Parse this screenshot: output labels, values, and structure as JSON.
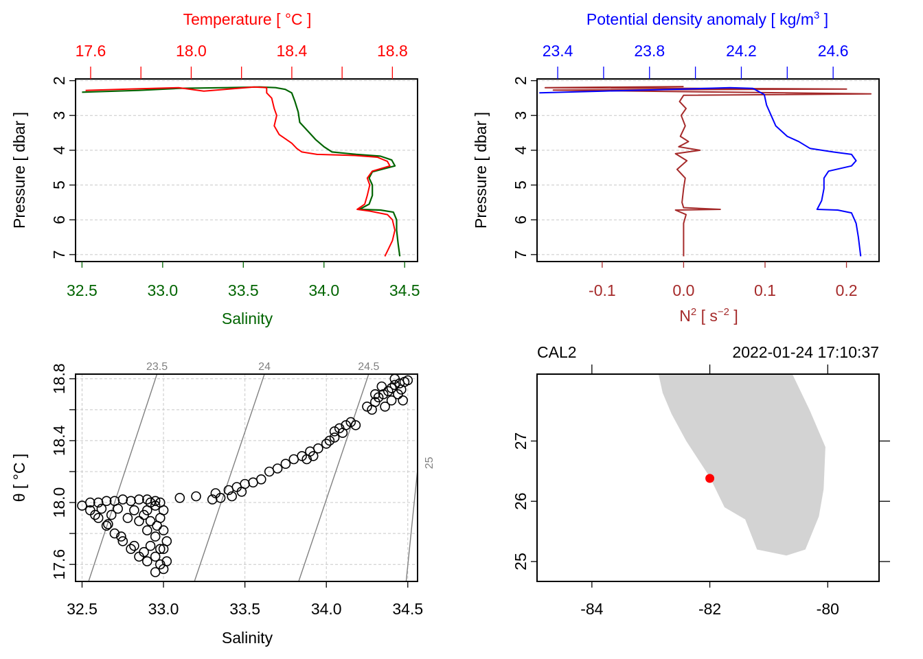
{
  "colors": {
    "temperature": "#ff0000",
    "salinity": "#006400",
    "density": "#0000ff",
    "n2": "#a52a2a",
    "land": "#d3d3d3",
    "station": "#ff0000",
    "isopycnal": "#808080",
    "grid": "#c8c8c8"
  },
  "chart_data": [
    {
      "id": "salinity-temperature-profile",
      "type": "line",
      "top_axis_title": "Temperature [ °C ]",
      "bottom_axis_title": "Salinity",
      "left_axis_title": "Pressure [ dbar ]",
      "y_range": [
        7.2,
        1.95
      ],
      "y_ticks": [
        2,
        3,
        4,
        5,
        6,
        7
      ],
      "y_tick_labels": [
        "2",
        "3",
        "4",
        "5",
        "6",
        "7"
      ],
      "bottom_range": [
        32.46,
        34.58
      ],
      "bottom_ticks": [
        32.5,
        33.0,
        33.5,
        34.0,
        34.5
      ],
      "bottom_tick_labels": [
        "32.5",
        "33.0",
        "33.5",
        "34.0",
        "34.5"
      ],
      "top_range": [
        17.54,
        18.9
      ],
      "top_ticks": [
        17.6,
        17.8,
        18.0,
        18.2,
        18.4,
        18.6,
        18.8
      ],
      "top_tick_labels": [
        "17.6",
        "",
        "18.0",
        "",
        "18.4",
        "",
        "18.8"
      ],
      "series": [
        {
          "name": "Temperature",
          "axis": "top",
          "points": [
            [
              17.58,
              2.28
            ],
            [
              17.75,
              2.24
            ],
            [
              17.95,
              2.2
            ],
            [
              18.05,
              2.3
            ],
            [
              18.25,
              2.18
            ],
            [
              18.3,
              2.2
            ],
            [
              18.3,
              2.35
            ],
            [
              18.32,
              2.5
            ],
            [
              18.33,
              2.8
            ],
            [
              18.34,
              3.0
            ],
            [
              18.33,
              3.3
            ],
            [
              18.35,
              3.55
            ],
            [
              18.37,
              3.65
            ],
            [
              18.4,
              3.8
            ],
            [
              18.42,
              3.95
            ],
            [
              18.44,
              4.05
            ],
            [
              18.5,
              4.12
            ],
            [
              18.65,
              4.15
            ],
            [
              18.74,
              4.2
            ],
            [
              18.78,
              4.32
            ],
            [
              18.79,
              4.45
            ],
            [
              18.72,
              4.6
            ],
            [
              18.7,
              4.8
            ],
            [
              18.71,
              5.0
            ],
            [
              18.7,
              5.3
            ],
            [
              18.69,
              5.55
            ],
            [
              18.66,
              5.7
            ],
            [
              18.71,
              5.75
            ],
            [
              18.78,
              5.85
            ],
            [
              18.8,
              6.0
            ],
            [
              18.81,
              6.3
            ],
            [
              18.8,
              6.6
            ],
            [
              18.78,
              6.9
            ],
            [
              18.77,
              7.05
            ]
          ]
        },
        {
          "name": "Salinity",
          "axis": "bottom",
          "points": [
            [
              32.5,
              2.33
            ],
            [
              32.85,
              2.28
            ],
            [
              33.1,
              2.22
            ],
            [
              33.4,
              2.2
            ],
            [
              33.6,
              2.18
            ],
            [
              33.7,
              2.2
            ],
            [
              33.76,
              2.25
            ],
            [
              33.8,
              2.35
            ],
            [
              33.82,
              2.6
            ],
            [
              33.84,
              2.9
            ],
            [
              33.85,
              3.2
            ],
            [
              33.9,
              3.45
            ],
            [
              33.95,
              3.7
            ],
            [
              34.0,
              3.9
            ],
            [
              34.05,
              4.05
            ],
            [
              34.2,
              4.12
            ],
            [
              34.35,
              4.17
            ],
            [
              34.42,
              4.28
            ],
            [
              34.44,
              4.45
            ],
            [
              34.3,
              4.62
            ],
            [
              34.28,
              4.8
            ],
            [
              34.3,
              5.0
            ],
            [
              34.3,
              5.3
            ],
            [
              34.28,
              5.55
            ],
            [
              34.22,
              5.7
            ],
            [
              34.35,
              5.72
            ],
            [
              34.43,
              5.78
            ],
            [
              34.45,
              6.0
            ],
            [
              34.45,
              6.3
            ],
            [
              34.46,
              6.7
            ],
            [
              34.47,
              7.05
            ]
          ]
        }
      ]
    },
    {
      "id": "density-n2-profile",
      "type": "line",
      "top_axis_title": "Potential density anomaly [ kg/m",
      "top_axis_title_sup": "3",
      "top_axis_title_end": " ]",
      "bottom_axis_title": "N",
      "bottom_axis_title_sup": "2",
      "bottom_axis_title_mid": " [ s",
      "bottom_axis_title_sup2": "−2",
      "bottom_axis_title_end": " ]",
      "left_axis_title": "Pressure [ dbar ]",
      "y_range": [
        7.2,
        1.95
      ],
      "y_ticks": [
        2,
        3,
        4,
        5,
        6,
        7
      ],
      "y_tick_labels": [
        "2",
        "3",
        "4",
        "5",
        "6",
        "7"
      ],
      "bottom_range": [
        -0.18,
        0.24
      ],
      "bottom_ticks": [
        -0.1,
        0.0,
        0.1,
        0.2
      ],
      "bottom_tick_labels": [
        "-0.1",
        "0.0",
        "0.1",
        "0.2"
      ],
      "top_range": [
        23.31,
        24.8
      ],
      "top_ticks": [
        23.4,
        23.6,
        23.8,
        24.0,
        24.2,
        24.4,
        24.6
      ],
      "top_tick_labels": [
        "23.4",
        "",
        "23.8",
        "",
        "24.2",
        "",
        "24.6"
      ],
      "series": [
        {
          "name": "Potential density anomaly",
          "axis": "top",
          "points": [
            [
              23.32,
              2.35
            ],
            [
              23.6,
              2.3
            ],
            [
              23.95,
              2.24
            ],
            [
              24.15,
              2.2
            ],
            [
              24.25,
              2.22
            ],
            [
              24.3,
              2.4
            ],
            [
              24.31,
              2.7
            ],
            [
              24.33,
              3.0
            ],
            [
              24.35,
              3.3
            ],
            [
              24.4,
              3.6
            ],
            [
              24.45,
              3.75
            ],
            [
              24.5,
              3.95
            ],
            [
              24.6,
              4.05
            ],
            [
              24.68,
              4.12
            ],
            [
              24.7,
              4.3
            ],
            [
              24.68,
              4.45
            ],
            [
              24.58,
              4.6
            ],
            [
              24.56,
              4.8
            ],
            [
              24.56,
              5.1
            ],
            [
              24.55,
              5.45
            ],
            [
              24.53,
              5.7
            ],
            [
              24.62,
              5.72
            ],
            [
              24.68,
              5.8
            ],
            [
              24.7,
              6.1
            ],
            [
              24.71,
              6.5
            ],
            [
              24.72,
              7.05
            ]
          ]
        },
        {
          "name": "N2",
          "axis": "bottom",
          "points": [
            [
              0.0,
              2.17
            ],
            [
              -0.17,
              2.2
            ],
            [
              0.2,
              2.24
            ],
            [
              -0.16,
              2.27
            ],
            [
              0.23,
              2.38
            ],
            [
              0.0,
              2.42
            ],
            [
              -0.005,
              2.6
            ],
            [
              0.003,
              2.8
            ],
            [
              -0.003,
              3.0
            ],
            [
              0.002,
              3.3
            ],
            [
              -0.004,
              3.6
            ],
            [
              0.006,
              3.75
            ],
            [
              -0.006,
              3.9
            ],
            [
              0.02,
              4.0
            ],
            [
              -0.01,
              4.1
            ],
            [
              0.004,
              4.3
            ],
            [
              -0.008,
              4.55
            ],
            [
              0.002,
              4.8
            ],
            [
              0.0,
              5.1
            ],
            [
              -0.002,
              5.5
            ],
            [
              0.0,
              5.65
            ],
            [
              0.045,
              5.7
            ],
            [
              -0.01,
              5.72
            ],
            [
              0.003,
              5.85
            ],
            [
              0.0,
              6.1
            ],
            [
              0.0,
              6.5
            ],
            [
              0.0,
              7.05
            ]
          ]
        }
      ]
    },
    {
      "id": "ts-diagram",
      "type": "scatter",
      "xlabel": "Salinity",
      "ylabel": "θ [ °C ]",
      "x_range": [
        32.46,
        34.56
      ],
      "y_range": [
        17.49,
        18.83
      ],
      "x_ticks": [
        32.5,
        33.0,
        33.5,
        34.0,
        34.5
      ],
      "x_tick_labels": [
        "32.5",
        "33.0",
        "33.5",
        "34.0",
        "34.5"
      ],
      "y_ticks": [
        17.6,
        18.0,
        18.4,
        18.8
      ],
      "y_tick_labels": [
        "17.6",
        "18.0",
        "18.4",
        "18.8"
      ],
      "y_minor_ticks": [
        17.8,
        18.2,
        18.6
      ],
      "isopycnals": [
        {
          "label": "23.5",
          "x0": 32.54,
          "x1": 32.96
        },
        {
          "label": "24",
          "x0": 33.19,
          "x1": 33.62
        },
        {
          "label": "24.5",
          "x0": 33.83,
          "x1": 34.26
        },
        {
          "label": "25",
          "x0": 34.49,
          "x1": 34.62
        }
      ],
      "points": [
        [
          32.5,
          17.98
        ],
        [
          32.55,
          17.95
        ],
        [
          32.6,
          17.9
        ],
        [
          32.65,
          17.85
        ],
        [
          32.7,
          17.8
        ],
        [
          32.75,
          17.75
        ],
        [
          32.8,
          17.7
        ],
        [
          32.85,
          17.65
        ],
        [
          32.9,
          17.62
        ],
        [
          32.55,
          18.0
        ],
        [
          32.6,
          18.0
        ],
        [
          32.65,
          18.01
        ],
        [
          32.7,
          18.01
        ],
        [
          32.75,
          18.02
        ],
        [
          32.8,
          18.01
        ],
        [
          32.85,
          18.02
        ],
        [
          32.9,
          18.02
        ],
        [
          32.95,
          18.01
        ],
        [
          32.58,
          17.92
        ],
        [
          32.66,
          17.86
        ],
        [
          32.74,
          17.78
        ],
        [
          32.82,
          17.72
        ],
        [
          32.88,
          17.68
        ],
        [
          32.9,
          17.95
        ],
        [
          32.92,
          17.88
        ],
        [
          32.9,
          17.82
        ],
        [
          32.95,
          17.78
        ],
        [
          32.92,
          17.72
        ],
        [
          32.98,
          17.7
        ],
        [
          32.95,
          17.65
        ],
        [
          32.98,
          17.6
        ],
        [
          33.0,
          17.57
        ],
        [
          32.95,
          17.55
        ],
        [
          33.02,
          17.62
        ],
        [
          33.0,
          17.7
        ],
        [
          32.96,
          17.85
        ],
        [
          32.98,
          17.9
        ],
        [
          33.02,
          17.75
        ],
        [
          33.0,
          17.82
        ],
        [
          32.88,
          17.92
        ],
        [
          32.85,
          17.88
        ],
        [
          32.82,
          17.95
        ],
        [
          32.78,
          17.9
        ],
        [
          32.72,
          17.96
        ],
        [
          32.68,
          17.92
        ],
        [
          32.62,
          17.96
        ],
        [
          32.95,
          17.98
        ],
        [
          32.92,
          18.0
        ],
        [
          32.98,
          18.0
        ],
        [
          33.0,
          17.95
        ],
        [
          33.1,
          18.03
        ],
        [
          33.2,
          18.04
        ],
        [
          33.3,
          18.02
        ],
        [
          33.35,
          18.03
        ],
        [
          33.32,
          18.06
        ],
        [
          33.4,
          18.08
        ],
        [
          33.45,
          18.1
        ],
        [
          33.5,
          18.12
        ],
        [
          33.55,
          18.13
        ],
        [
          33.48,
          18.07
        ],
        [
          33.42,
          18.04
        ],
        [
          33.6,
          18.15
        ],
        [
          33.65,
          18.2
        ],
        [
          33.7,
          18.22
        ],
        [
          33.75,
          18.25
        ],
        [
          33.8,
          18.28
        ],
        [
          33.85,
          18.3
        ],
        [
          33.9,
          18.33
        ],
        [
          33.95,
          18.35
        ],
        [
          34.0,
          18.38
        ],
        [
          33.88,
          18.28
        ],
        [
          33.92,
          18.3
        ],
        [
          34.02,
          18.4
        ],
        [
          34.05,
          18.42
        ],
        [
          34.1,
          18.45
        ],
        [
          34.08,
          18.48
        ],
        [
          34.12,
          18.5
        ],
        [
          34.15,
          18.52
        ],
        [
          34.18,
          18.5
        ],
        [
          34.05,
          18.46
        ],
        [
          34.25,
          18.62
        ],
        [
          34.3,
          18.65
        ],
        [
          34.32,
          18.68
        ],
        [
          34.35,
          18.7
        ],
        [
          34.38,
          18.72
        ],
        [
          34.4,
          18.74
        ],
        [
          34.42,
          18.76
        ],
        [
          34.45,
          18.77
        ],
        [
          34.48,
          18.78
        ],
        [
          34.5,
          18.79
        ],
        [
          34.44,
          18.7
        ],
        [
          34.46,
          18.73
        ],
        [
          34.36,
          18.62
        ],
        [
          34.4,
          18.66
        ],
        [
          34.28,
          18.6
        ],
        [
          34.34,
          18.75
        ],
        [
          34.42,
          18.8
        ],
        [
          34.47,
          18.66
        ],
        [
          34.3,
          18.7
        ]
      ]
    },
    {
      "id": "station-map",
      "type": "map",
      "station_label": "CAL2",
      "datetime": "2022-01-24 17:10:37",
      "x_range": [
        -84.93,
        -79.13
      ],
      "y_range": [
        24.67,
        28.11
      ],
      "x_ticks": [
        -84,
        -82,
        -80
      ],
      "x_tick_labels": [
        "-84",
        "-82",
        "-80"
      ],
      "y_ticks": [
        25,
        26,
        27
      ],
      "y_tick_labels": [
        "25",
        "26",
        "27"
      ],
      "station_point": [
        -82.0,
        26.38
      ],
      "land": [
        [
          -82.87,
          28.11
        ],
        [
          -82.8,
          27.8
        ],
        [
          -82.65,
          27.45
        ],
        [
          -82.4,
          27.0
        ],
        [
          -82.2,
          26.7
        ],
        [
          -82.0,
          26.4
        ],
        [
          -81.75,
          25.9
        ],
        [
          -81.4,
          25.7
        ],
        [
          -81.2,
          25.2
        ],
        [
          -80.7,
          25.1
        ],
        [
          -80.38,
          25.2
        ],
        [
          -80.15,
          25.75
        ],
        [
          -80.07,
          26.2
        ],
        [
          -80.04,
          26.9
        ],
        [
          -80.3,
          27.5
        ],
        [
          -80.6,
          28.11
        ]
      ]
    }
  ]
}
